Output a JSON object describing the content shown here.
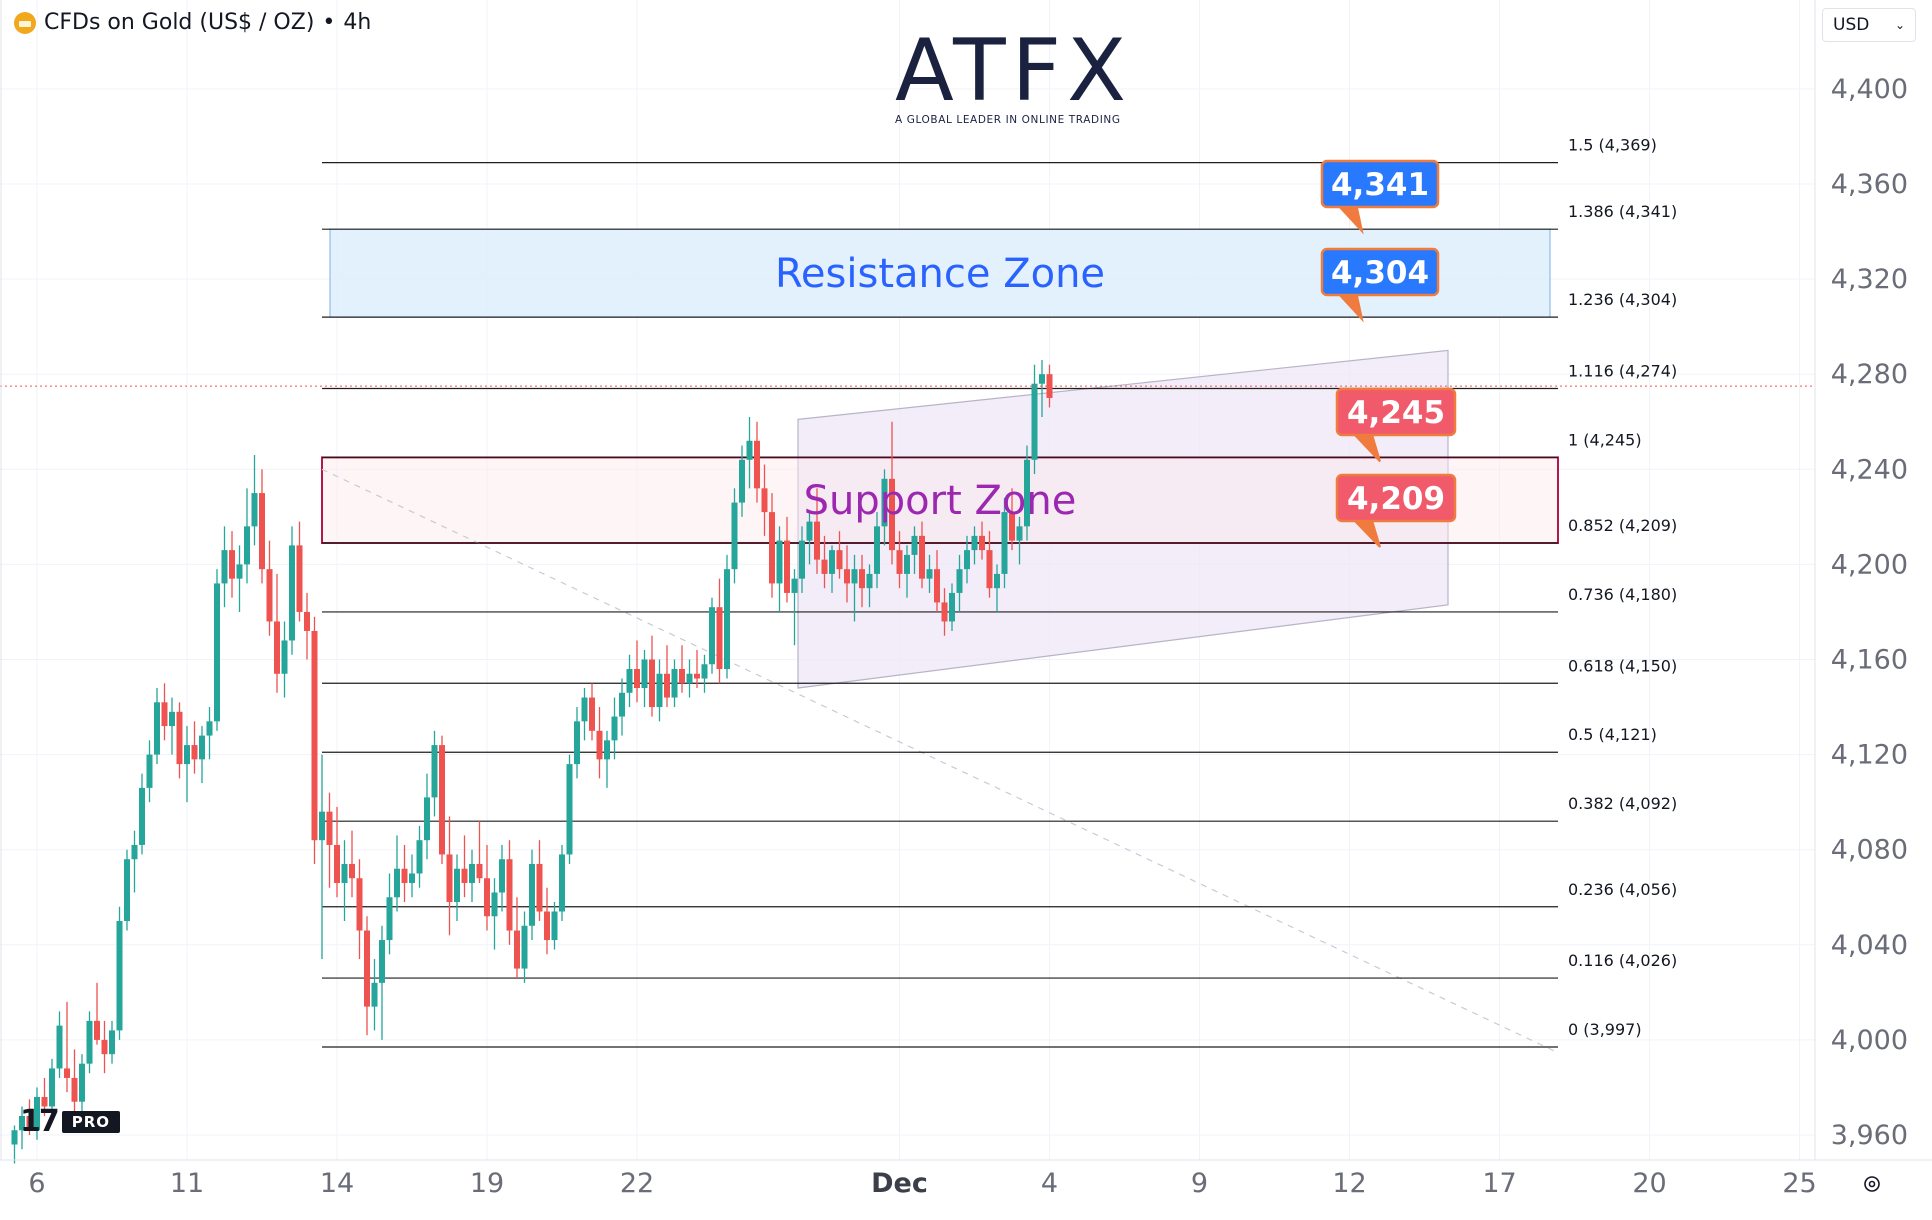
{
  "header": {
    "symbol_title": "CFDs on Gold (US$ / OZ)",
    "interval": "4h",
    "currency": "USD"
  },
  "logo": {
    "brand": "ATFX",
    "tagline": "A GLOBAL LEADER IN ONLINE TRADING"
  },
  "branding": {
    "tv_pro": "PRO"
  },
  "colors": {
    "up": "#26a69a",
    "down": "#ef5350",
    "resistance_fill": "#ddeefc",
    "resistance_text": "#2962ff",
    "support_border": "#b2184a",
    "support_text": "#9c27b0",
    "blue_label": "#2979ff",
    "red_label": "#f05a6a",
    "channel_fill": "#ede7f6"
  },
  "chart_data": {
    "type": "candlestick",
    "y_axis": {
      "range": [
        3945,
        4425
      ],
      "ticks": [
        "3,960",
        "4,000",
        "4,040",
        "4,080",
        "4,120",
        "4,160",
        "4,200",
        "4,240",
        "4,280",
        "4,320",
        "4,360",
        "4,400"
      ],
      "tick_values": [
        3960,
        4000,
        4040,
        4080,
        4120,
        4160,
        4200,
        4240,
        4280,
        4320,
        4360,
        4400
      ]
    },
    "x_axis": {
      "tick_labels": [
        "6",
        "11",
        "14",
        "19",
        "22",
        "Dec",
        "4",
        "9",
        "12",
        "17",
        "20",
        "25"
      ],
      "tick_bar_index": [
        0,
        20,
        40,
        60,
        80,
        115,
        135,
        155,
        175,
        195,
        215,
        235
      ]
    },
    "fibonacci_levels": [
      {
        "label": "1.5 (4,369)",
        "value": 4369
      },
      {
        "label": "1.386 (4,341)",
        "value": 4341
      },
      {
        "label": "1.236 (4,304)",
        "value": 4304
      },
      {
        "label": "1.116 (4,274)",
        "value": 4274
      },
      {
        "label": "1 (4,245)",
        "value": 4245
      },
      {
        "label": "0.852 (4,209)",
        "value": 4209
      },
      {
        "label": "0.736 (4,180)",
        "value": 4180
      },
      {
        "label": "0.618 (4,150)",
        "value": 4150
      },
      {
        "label": "0.5 (4,121)",
        "value": 4121
      },
      {
        "label": "0.382 (4,092)",
        "value": 4092
      },
      {
        "label": "0.236 (4,056)",
        "value": 4056
      },
      {
        "label": "0.116 (4,026)",
        "value": 4026
      },
      {
        "label": "0 (3,997)",
        "value": 3997
      }
    ],
    "zones": [
      {
        "name": "Resistance Zone",
        "low": 4304,
        "high": 4341
      },
      {
        "name": "Support Zone",
        "low": 4209,
        "high": 4245
      }
    ],
    "price_labels": [
      {
        "text": "4,341",
        "value": 4341,
        "color": "blue"
      },
      {
        "text": "4,304",
        "value": 4304,
        "color": "blue"
      },
      {
        "text": "4,245",
        "value": 4245,
        "color": "red"
      },
      {
        "text": "4,209",
        "value": 4209,
        "color": "red"
      }
    ],
    "current_price": 4275,
    "candles": [
      [
        3956,
        3964,
        3948,
        3962
      ],
      [
        3962,
        3972,
        3954,
        3968
      ],
      [
        3968,
        3975,
        3960,
        3962
      ],
      [
        3962,
        3980,
        3958,
        3976
      ],
      [
        3976,
        3984,
        3968,
        3972
      ],
      [
        3972,
        3992,
        3970,
        3988
      ],
      [
        3988,
        4012,
        3984,
        4006
      ],
      [
        3988,
        4016,
        3978,
        3984
      ],
      [
        3984,
        3996,
        3968,
        3974
      ],
      [
        3974,
        3994,
        3970,
        3990
      ],
      [
        3990,
        4012,
        3986,
        4008
      ],
      [
        4008,
        4024,
        3998,
        4000
      ],
      [
        4000,
        4008,
        3986,
        3994
      ],
      [
        3994,
        4008,
        3990,
        4004
      ],
      [
        4004,
        4056,
        4000,
        4050
      ],
      [
        4050,
        4080,
        4046,
        4076
      ],
      [
        4076,
        4088,
        4062,
        4082
      ],
      [
        4082,
        4112,
        4078,
        4106
      ],
      [
        4106,
        4126,
        4100,
        4120
      ],
      [
        4120,
        4148,
        4116,
        4142
      ],
      [
        4142,
        4150,
        4126,
        4132
      ],
      [
        4132,
        4144,
        4120,
        4138
      ],
      [
        4138,
        4142,
        4110,
        4116
      ],
      [
        4116,
        4132,
        4100,
        4124
      ],
      [
        4124,
        4134,
        4112,
        4118
      ],
      [
        4118,
        4132,
        4108,
        4128
      ],
      [
        4128,
        4140,
        4118,
        4134
      ],
      [
        4134,
        4198,
        4130,
        4192
      ],
      [
        4192,
        4216,
        4182,
        4206
      ],
      [
        4206,
        4214,
        4186,
        4194
      ],
      [
        4194,
        4208,
        4180,
        4200
      ],
      [
        4200,
        4232,
        4192,
        4216
      ],
      [
        4216,
        4246,
        4208,
        4230
      ],
      [
        4230,
        4240,
        4192,
        4198
      ],
      [
        4198,
        4210,
        4170,
        4176
      ],
      [
        4176,
        4196,
        4146,
        4154
      ],
      [
        4154,
        4176,
        4144,
        4168
      ],
      [
        4168,
        4216,
        4162,
        4208
      ],
      [
        4208,
        4218,
        4176,
        4180
      ],
      [
        4180,
        4188,
        4160,
        4172
      ],
      [
        4172,
        4178,
        4074,
        4084
      ],
      [
        4084,
        4120,
        4034,
        4096
      ],
      [
        4096,
        4104,
        4064,
        4082
      ],
      [
        4082,
        4098,
        4060,
        4066
      ],
      [
        4066,
        4084,
        4050,
        4074
      ],
      [
        4074,
        4088,
        4060,
        4068
      ],
      [
        4068,
        4076,
        4034,
        4046
      ],
      [
        4046,
        4052,
        4002,
        4014
      ],
      [
        4014,
        4034,
        4004,
        4024
      ],
      [
        4024,
        4048,
        4000,
        4042
      ],
      [
        4042,
        4070,
        4036,
        4060
      ],
      [
        4060,
        4086,
        4054,
        4072
      ],
      [
        4072,
        4082,
        4058,
        4066
      ],
      [
        4066,
        4078,
        4060,
        4070
      ],
      [
        4070,
        4090,
        4064,
        4084
      ],
      [
        4084,
        4112,
        4076,
        4102
      ],
      [
        4102,
        4130,
        4094,
        4124
      ],
      [
        4124,
        4128,
        4074,
        4078
      ],
      [
        4078,
        4094,
        4044,
        4058
      ],
      [
        4058,
        4078,
        4050,
        4072
      ],
      [
        4072,
        4086,
        4060,
        4066
      ],
      [
        4066,
        4080,
        4058,
        4074
      ],
      [
        4074,
        4092,
        4066,
        4068
      ],
      [
        4068,
        4082,
        4046,
        4052
      ],
      [
        4052,
        4068,
        4038,
        4062
      ],
      [
        4062,
        4082,
        4054,
        4076
      ],
      [
        4076,
        4084,
        4040,
        4046
      ],
      [
        4046,
        4060,
        4026,
        4030
      ],
      [
        4030,
        4054,
        4024,
        4048
      ],
      [
        4048,
        4080,
        4042,
        4074
      ],
      [
        4074,
        4084,
        4050,
        4054
      ],
      [
        4054,
        4064,
        4036,
        4042
      ],
      [
        4042,
        4058,
        4038,
        4054
      ],
      [
        4054,
        4082,
        4050,
        4078
      ],
      [
        4078,
        4120,
        4074,
        4116
      ],
      [
        4116,
        4140,
        4110,
        4134
      ],
      [
        4134,
        4148,
        4126,
        4144
      ],
      [
        4144,
        4150,
        4126,
        4130
      ],
      [
        4130,
        4140,
        4110,
        4118
      ],
      [
        4118,
        4130,
        4106,
        4126
      ],
      [
        4126,
        4144,
        4118,
        4136
      ],
      [
        4136,
        4152,
        4128,
        4146
      ],
      [
        4146,
        4162,
        4140,
        4156
      ],
      [
        4156,
        4168,
        4142,
        4148
      ],
      [
        4148,
        4164,
        4140,
        4160
      ],
      [
        4160,
        4170,
        4136,
        4140
      ],
      [
        4140,
        4160,
        4134,
        4154
      ],
      [
        4154,
        4166,
        4140,
        4144
      ],
      [
        4144,
        4160,
        4140,
        4156
      ],
      [
        4156,
        4166,
        4146,
        4150
      ],
      [
        4150,
        4160,
        4144,
        4154
      ],
      [
        4154,
        4164,
        4148,
        4152
      ],
      [
        4152,
        4162,
        4146,
        4158
      ],
      [
        4158,
        4186,
        4154,
        4182
      ],
      [
        4182,
        4194,
        4150,
        4156
      ],
      [
        4156,
        4204,
        4152,
        4198
      ],
      [
        4198,
        4232,
        4192,
        4226
      ],
      [
        4226,
        4250,
        4220,
        4244
      ],
      [
        4244,
        4262,
        4232,
        4252
      ],
      [
        4252,
        4260,
        4226,
        4232
      ],
      [
        4232,
        4242,
        4212,
        4222
      ],
      [
        4222,
        4230,
        4186,
        4192
      ],
      [
        4192,
        4216,
        4180,
        4210
      ],
      [
        4210,
        4220,
        4184,
        4188
      ],
      [
        4188,
        4198,
        4166,
        4194
      ],
      [
        4194,
        4216,
        4188,
        4210
      ],
      [
        4210,
        4222,
        4200,
        4218
      ],
      [
        4218,
        4232,
        4196,
        4202
      ],
      [
        4202,
        4212,
        4190,
        4196
      ],
      [
        4196,
        4208,
        4188,
        4206
      ],
      [
        4206,
        4214,
        4194,
        4198
      ],
      [
        4198,
        4208,
        4184,
        4192
      ],
      [
        4192,
        4204,
        4176,
        4198
      ],
      [
        4198,
        4204,
        4182,
        4190
      ],
      [
        4190,
        4200,
        4182,
        4196
      ],
      [
        4196,
        4222,
        4190,
        4216
      ],
      [
        4216,
        4240,
        4208,
        4236
      ],
      [
        4236,
        4260,
        4200,
        4206
      ],
      [
        4206,
        4214,
        4190,
        4196
      ],
      [
        4196,
        4208,
        4186,
        4204
      ],
      [
        4204,
        4216,
        4196,
        4212
      ],
      [
        4212,
        4218,
        4190,
        4194
      ],
      [
        4194,
        4204,
        4188,
        4198
      ],
      [
        4198,
        4206,
        4180,
        4184
      ],
      [
        4184,
        4190,
        4170,
        4176
      ],
      [
        4176,
        4192,
        4172,
        4188
      ],
      [
        4188,
        4204,
        4180,
        4198
      ],
      [
        4198,
        4212,
        4192,
        4206
      ],
      [
        4206,
        4216,
        4200,
        4212
      ],
      [
        4212,
        4218,
        4202,
        4206
      ],
      [
        4206,
        4214,
        4186,
        4190
      ],
      [
        4190,
        4200,
        4180,
        4196
      ],
      [
        4196,
        4228,
        4190,
        4222
      ],
      [
        4222,
        4232,
        4206,
        4210
      ],
      [
        4210,
        4220,
        4200,
        4216
      ],
      [
        4216,
        4250,
        4210,
        4244
      ],
      [
        4244,
        4284,
        4238,
        4276
      ],
      [
        4276,
        4286,
        4262,
        4280
      ],
      [
        4280,
        4284,
        4266,
        4270
      ]
    ],
    "candle_bar_index_start": -1,
    "candle_bar_index_map": "see script"
  }
}
